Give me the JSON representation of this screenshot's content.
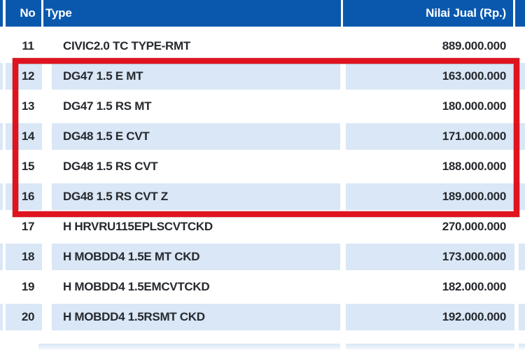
{
  "table": {
    "columns": [
      {
        "label": "No"
      },
      {
        "label": "Type"
      },
      {
        "label": "Nilai Jual (Rp.)"
      }
    ],
    "rows": [
      {
        "no": "11",
        "type": "CIVIC2.0 TC TYPE-RMT",
        "value": "889.000.000",
        "shaded": false,
        "highlighted": false
      },
      {
        "no": "12",
        "type": "DG47 1.5 E MT",
        "value": "163.000.000",
        "shaded": true,
        "highlighted": true
      },
      {
        "no": "13",
        "type": "DG47 1.5 RS MT",
        "value": "180.000.000",
        "shaded": false,
        "highlighted": true
      },
      {
        "no": "14",
        "type": "DG48 1.5 E CVT",
        "value": "171.000.000",
        "shaded": true,
        "highlighted": true
      },
      {
        "no": "15",
        "type": "DG48 1.5 RS CVT",
        "value": "188.000.000",
        "shaded": false,
        "highlighted": true
      },
      {
        "no": "16",
        "type": "DG48 1.5 RS CVT Z",
        "value": "189.000.000",
        "shaded": true,
        "highlighted": true
      },
      {
        "no": "17",
        "type": "H HRVRU115EPLSCVTCKD",
        "value": "270.000.000",
        "shaded": false,
        "highlighted": false
      },
      {
        "no": "18",
        "type": "H MOBDD4 1.5E MT CKD",
        "value": "173.000.000",
        "shaded": true,
        "highlighted": false
      },
      {
        "no": "19",
        "type": "H MOBDD4 1.5EMCVTCKD",
        "value": "182.000.000",
        "shaded": false,
        "highlighted": false
      },
      {
        "no": "20",
        "type": "H MOBDD4 1.5RSMT CKD",
        "value": "192.000.000",
        "shaded": true,
        "highlighted": false
      }
    ],
    "highlight": {
      "from_no": "12",
      "to_no": "16",
      "color": "#df141f"
    }
  },
  "colors": {
    "header_bg": "#0958ae",
    "shaded_row_bg": "#d9e7f6",
    "row_bg": "#ffffff",
    "text": "#26292e",
    "header_text": "#ffffff"
  }
}
